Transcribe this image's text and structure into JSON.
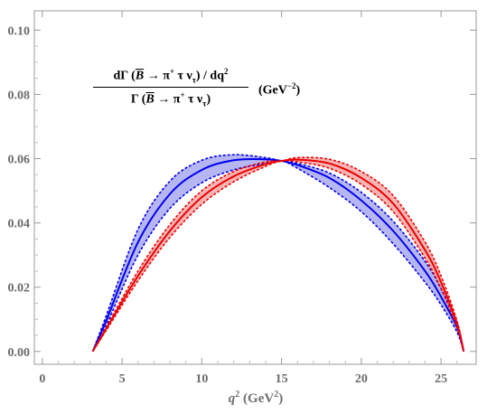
{
  "chart_data": {
    "type": "area",
    "title": "",
    "annotation": {
      "numerator": "dΓ (B̄ → π⁺ τ ν_τ) / dq²",
      "denominator": "Γ (B̄ → π⁺ τ ν_τ)",
      "unit": "(GeV⁻²)"
    },
    "xlabel": "q²  (GeV²)",
    "ylabel": "",
    "xlim": [
      -0.5,
      27.2
    ],
    "ylim": [
      -0.004,
      0.106
    ],
    "xticks": [
      0,
      5,
      10,
      15,
      20,
      25
    ],
    "yticks": [
      0.0,
      0.02,
      0.04,
      0.06,
      0.08,
      0.1
    ],
    "xtick_labels": [
      "0",
      "5",
      "10",
      "15",
      "20",
      "25"
    ],
    "ytick_labels": [
      "0.00",
      "0.02",
      "0.04",
      "0.06",
      "0.08",
      "0.10"
    ],
    "grid": false,
    "legend": "none",
    "x": [
      3.16,
      4,
      6,
      8,
      10,
      12,
      14,
      15,
      16,
      18,
      20,
      22,
      24,
      25,
      26,
      26.42
    ],
    "series": [
      {
        "color": "#0000ee",
        "fill": "#a9a9f0",
        "central": [
          0,
          0.0095,
          0.034,
          0.049,
          0.0565,
          0.0595,
          0.0598,
          0.0593,
          0.058,
          0.054,
          0.047,
          0.0375,
          0.025,
          0.017,
          0.0075,
          0
        ],
        "upper": [
          0,
          0.011,
          0.038,
          0.053,
          0.0595,
          0.0612,
          0.0603,
          0.0593,
          0.0585,
          0.0555,
          0.0495,
          0.0405,
          0.028,
          0.0195,
          0.009,
          0
        ],
        "lower": [
          0,
          0.008,
          0.03,
          0.0445,
          0.0525,
          0.0565,
          0.0585,
          0.0593,
          0.057,
          0.051,
          0.0435,
          0.0335,
          0.0215,
          0.0145,
          0.006,
          0
        ]
      },
      {
        "color": "#ee0000",
        "fill": "#f2a8a8",
        "central": [
          0,
          0.007,
          0.0235,
          0.0375,
          0.048,
          0.0545,
          0.0583,
          0.0593,
          0.0597,
          0.0585,
          0.054,
          0.046,
          0.0315,
          0.0215,
          0.0085,
          0
        ],
        "upper": [
          0,
          0.0075,
          0.025,
          0.0395,
          0.05,
          0.056,
          0.059,
          0.0593,
          0.0603,
          0.0598,
          0.056,
          0.0485,
          0.034,
          0.0235,
          0.0095,
          0
        ],
        "lower": [
          0,
          0.0065,
          0.022,
          0.0355,
          0.0458,
          0.0528,
          0.0576,
          0.0593,
          0.059,
          0.057,
          0.052,
          0.0435,
          0.029,
          0.0195,
          0.0075,
          0
        ]
      }
    ]
  }
}
